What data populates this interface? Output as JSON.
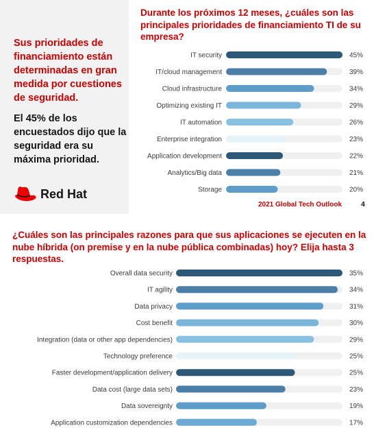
{
  "left_panel": {
    "heading": "Sus prioridades de financiamiento están determinadas en gran medida por cuestiones de seguridad.",
    "body": "El 45% de los encuestados dijo que la seguridad era su máxima prioridad.",
    "logo_text": "Red Hat",
    "logo_icon": "red-hat-fedora-icon"
  },
  "footer": {
    "source": "2021 Global Tech Outlook",
    "page": "4"
  },
  "colors": {
    "accent": "#cc0000",
    "track": "#f0f0f0",
    "navy": "#2d5877",
    "steel": "#4b7fa8",
    "blue": "#5e9cca",
    "light": "#89c2e0",
    "pale": "#e6f3f9"
  },
  "chart_data": [
    {
      "type": "bar",
      "title": "Durante los próximos 12 meses, ¿cuáles son las principales prioridades de financiamiento TI de su empresa?",
      "xlabel": "",
      "ylabel": "",
      "xlim": [
        0,
        45
      ],
      "categories": [
        "IT security",
        "IT/cloud management",
        "Cloud infrastructure",
        "Optimizing existing IT",
        "IT automation",
        "Enterprise integration",
        "Application development",
        "Analytics/Big data",
        "Storage"
      ],
      "values": [
        45,
        39,
        34,
        29,
        26,
        23,
        22,
        21,
        20
      ],
      "value_labels": [
        "45%",
        "39%",
        "34%",
        "29%",
        "26%",
        "23%",
        "22%",
        "21%",
        "20%"
      ],
      "bar_colors": [
        "#2d5877",
        "#4b7fa8",
        "#5e9cca",
        "#7bb6da",
        "#89c2e0",
        "#e6f3f9",
        "#2d5877",
        "#4b7fa8",
        "#5e9cca"
      ]
    },
    {
      "type": "bar",
      "title": "¿Cuáles son las principales razones para que sus aplicaciones se ejecuten en la nube híbrida (on premise y en la nube pública combinadas) hoy? Elija hasta 3 respuestas.",
      "xlabel": "",
      "ylabel": "",
      "xlim": [
        0,
        35
      ],
      "categories": [
        "Overall data security",
        "IT agility",
        "Data privacy",
        "Cost benefit",
        "Integration (data or other app dependencies)",
        "Technology preference",
        "Faster development/application delivery",
        "Data cost (large data sets)",
        "Data sovereignty",
        "Application customization dependencies"
      ],
      "values": [
        35,
        34,
        31,
        30,
        29,
        25,
        25,
        23,
        19,
        17
      ],
      "value_labels": [
        "35%",
        "34%",
        "31%",
        "30%",
        "29%",
        "25%",
        "25%",
        "23%",
        "19%",
        "17%"
      ],
      "bar_colors": [
        "#2d5877",
        "#4b7fa8",
        "#5e9cca",
        "#7bb6da",
        "#89c2e0",
        "#e6f3f9",
        "#2d5877",
        "#4b7fa8",
        "#5e9cca",
        "#6aaad3"
      ]
    }
  ]
}
